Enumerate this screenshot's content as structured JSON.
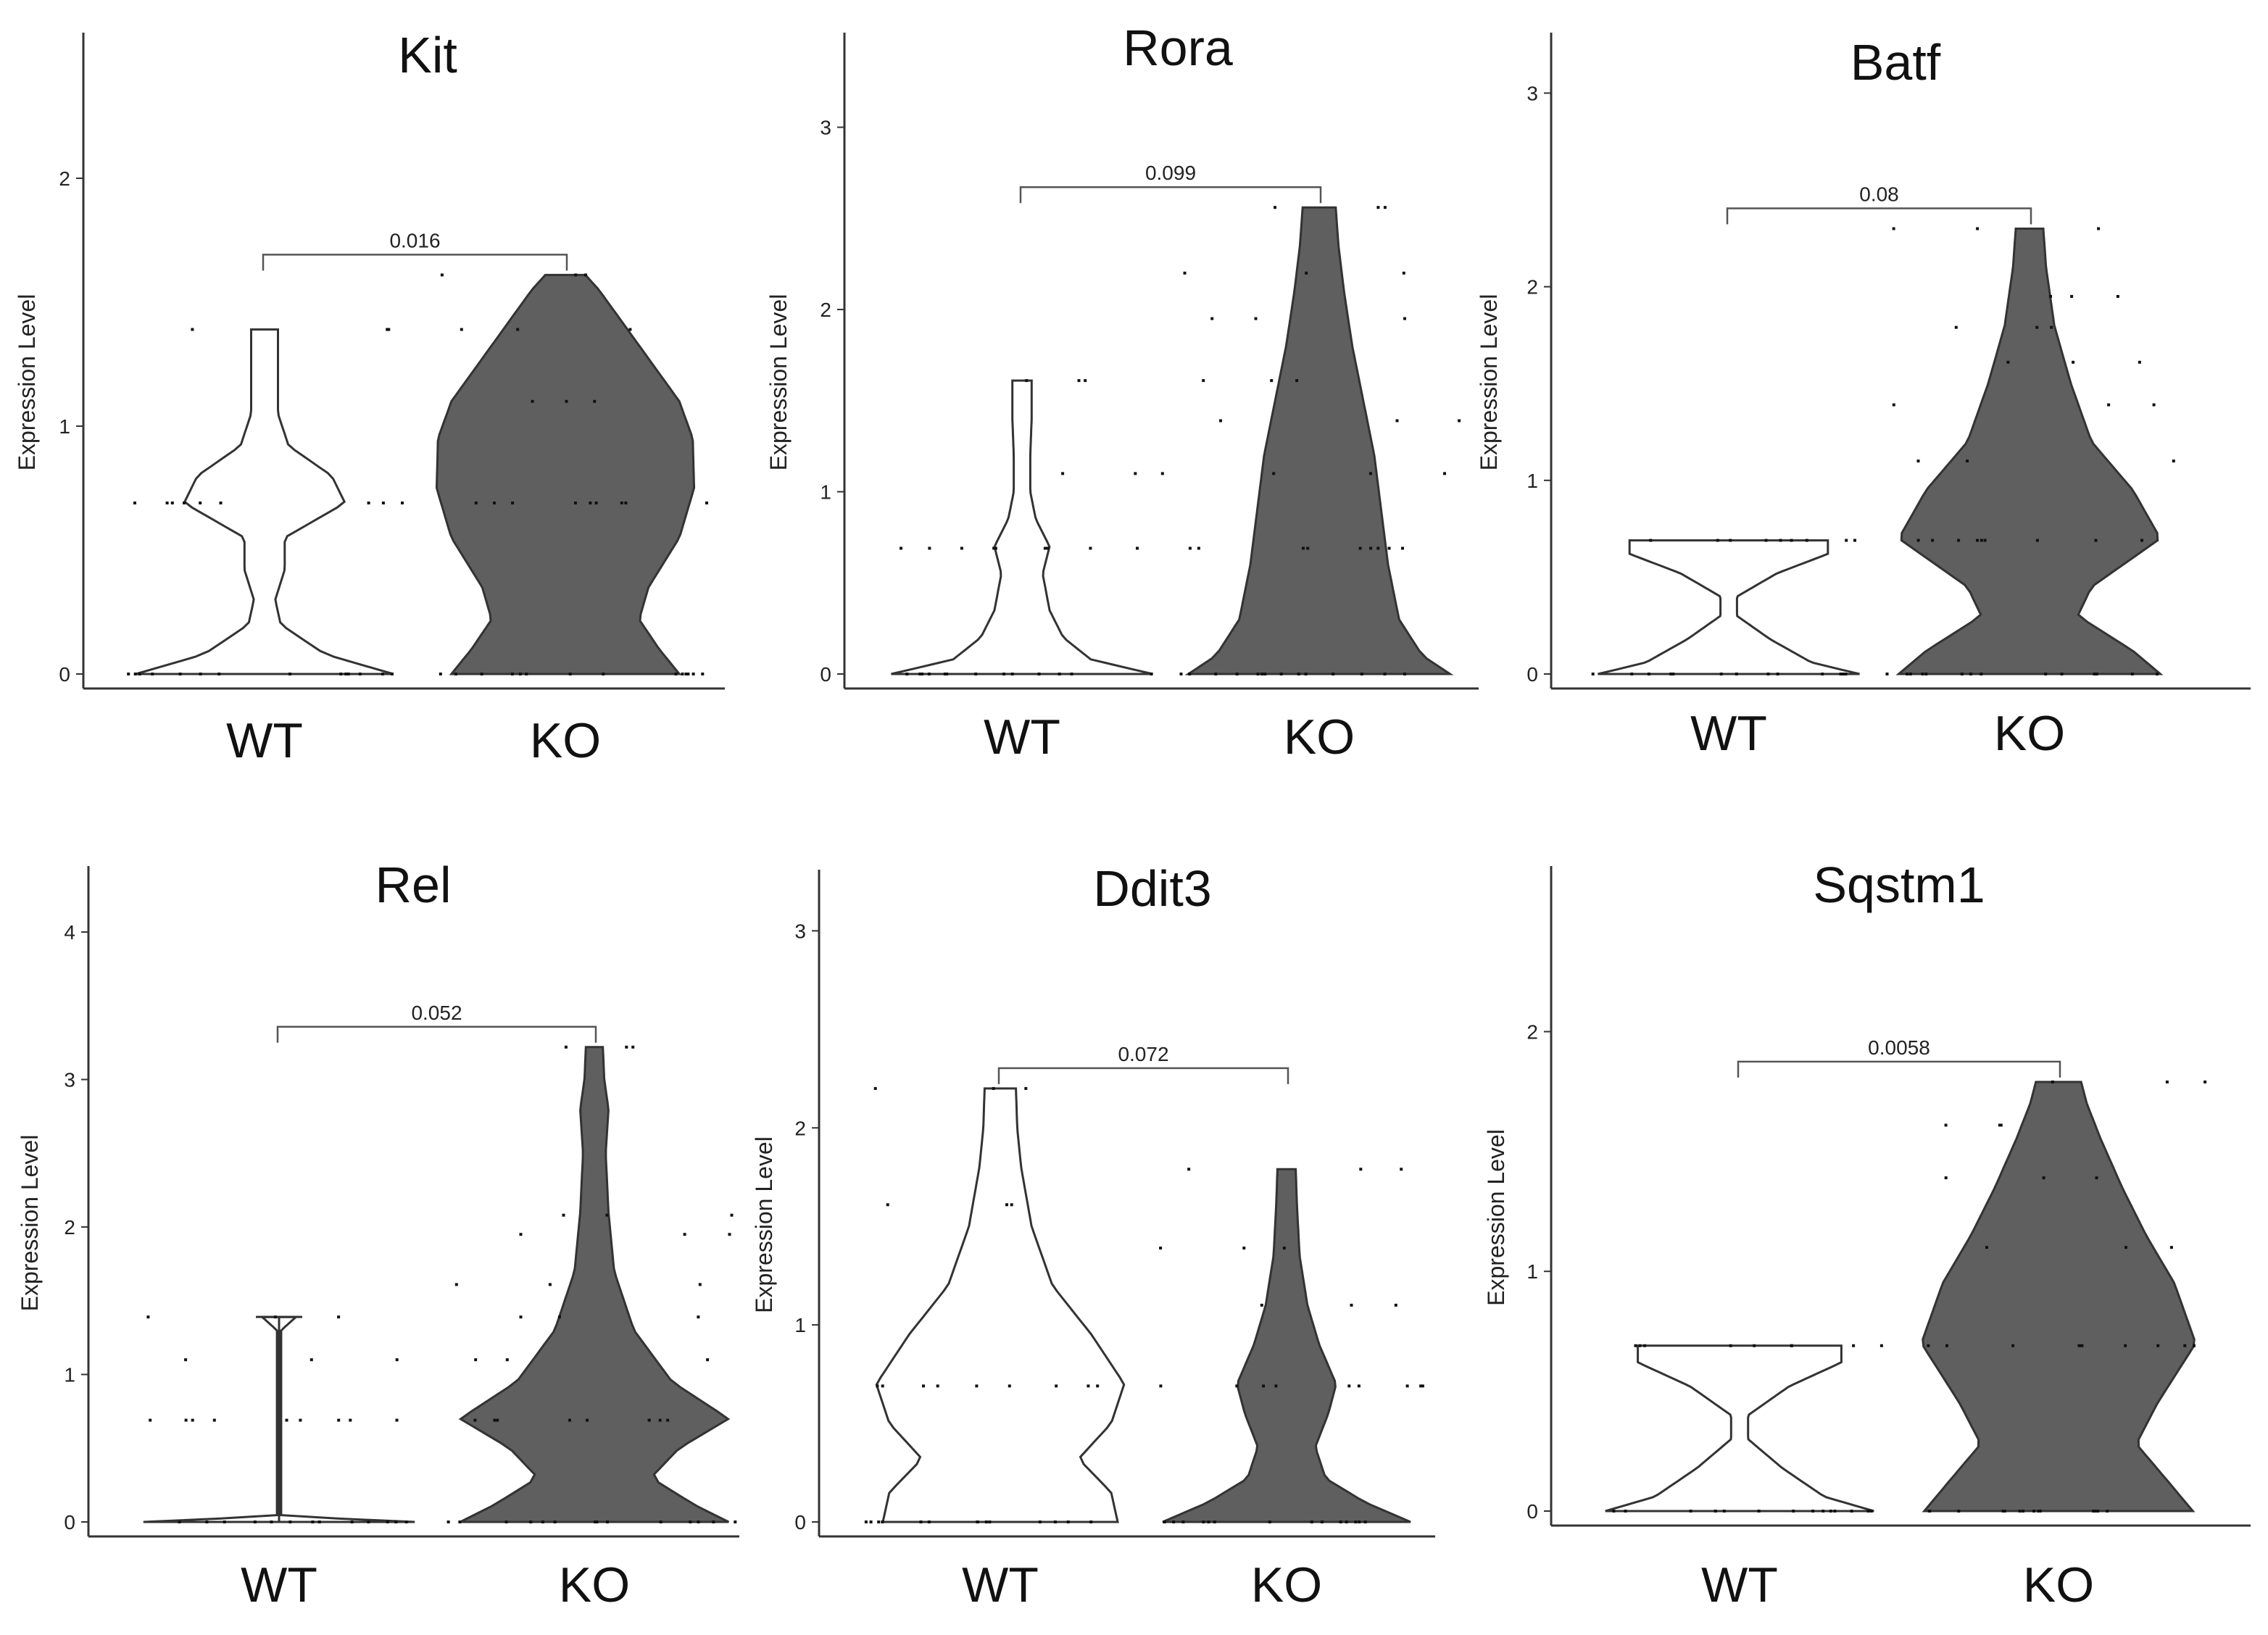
{
  "figure": {
    "y_axis_label": "Expression Level",
    "colors": {
      "wt_fill": "#ffffff",
      "ko_fill": "#5f5f5f",
      "outline": "#333333",
      "point": "#111111"
    }
  },
  "chart_data": [
    {
      "type": "violin",
      "title": "Kit",
      "ylabel": "Expression Level",
      "ylim": [
        0,
        2.5
      ],
      "yticks": [
        "0",
        "1",
        "2"
      ],
      "categories": [
        "WT",
        "KO"
      ],
      "p_value": "0.016",
      "series": [
        {
          "name": "WT",
          "max": 1.39,
          "levels": [
            0,
            0.69,
            1.39
          ],
          "profile": [
            [
              0,
              0.96
            ],
            [
              0.08,
              0.45
            ],
            [
              0.2,
              0.12
            ],
            [
              0.3,
              0.08
            ],
            [
              0.42,
              0.15
            ],
            [
              0.55,
              0.15
            ],
            [
              0.69,
              0.6
            ],
            [
              0.8,
              0.5
            ],
            [
              0.92,
              0.18
            ],
            [
              1.05,
              0.1
            ],
            [
              1.2,
              0.1
            ],
            [
              1.39,
              0.1
            ]
          ]
        },
        {
          "name": "KO",
          "max": 1.61,
          "levels": [
            0,
            0.69,
            1.1,
            1.39,
            1.61
          ],
          "profile": [
            [
              0,
              0.85
            ],
            [
              0.1,
              0.7
            ],
            [
              0.22,
              0.55
            ],
            [
              0.35,
              0.62
            ],
            [
              0.55,
              0.85
            ],
            [
              0.75,
              0.96
            ],
            [
              0.95,
              0.95
            ],
            [
              1.1,
              0.85
            ],
            [
              1.25,
              0.65
            ],
            [
              1.4,
              0.45
            ],
            [
              1.55,
              0.25
            ],
            [
              1.61,
              0.15
            ]
          ]
        }
      ]
    },
    {
      "type": "violin",
      "title": "Rora",
      "ylabel": "Expression Level",
      "ylim": [
        0,
        3.4
      ],
      "yticks": [
        "0",
        "1",
        "2",
        "3"
      ],
      "categories": [
        "WT",
        "KO"
      ],
      "p_value": "0.099",
      "series": [
        {
          "name": "WT",
          "max": 1.61,
          "levels": [
            0,
            0.69,
            1.1,
            1.61
          ],
          "profile": [
            [
              0,
              0.95
            ],
            [
              0.08,
              0.5
            ],
            [
              0.2,
              0.3
            ],
            [
              0.35,
              0.2
            ],
            [
              0.55,
              0.15
            ],
            [
              0.7,
              0.2
            ],
            [
              0.85,
              0.1
            ],
            [
              1.0,
              0.06
            ],
            [
              1.2,
              0.06
            ],
            [
              1.4,
              0.07
            ],
            [
              1.61,
              0.07
            ]
          ]
        },
        {
          "name": "KO",
          "max": 2.56,
          "levels": [
            0,
            0.69,
            1.1,
            1.39,
            1.61,
            1.95,
            2.2,
            2.56
          ],
          "profile": [
            [
              0,
              0.95
            ],
            [
              0.1,
              0.75
            ],
            [
              0.3,
              0.58
            ],
            [
              0.6,
              0.5
            ],
            [
              0.9,
              0.45
            ],
            [
              1.2,
              0.4
            ],
            [
              1.5,
              0.32
            ],
            [
              1.8,
              0.24
            ],
            [
              2.1,
              0.18
            ],
            [
              2.35,
              0.14
            ],
            [
              2.56,
              0.12
            ]
          ]
        }
      ]
    },
    {
      "type": "violin",
      "title": "Batf",
      "ylabel": "Expression Level",
      "ylim": [
        0,
        3.2
      ],
      "yticks": [
        "0",
        "1",
        "2",
        "3"
      ],
      "categories": [
        "WT",
        "KO"
      ],
      "p_value": "0.08",
      "series": [
        {
          "name": "WT",
          "max": 0.69,
          "levels": [
            0,
            0.69
          ],
          "profile": [
            [
              0,
              0.95
            ],
            [
              0.06,
              0.6
            ],
            [
              0.18,
              0.3
            ],
            [
              0.3,
              0.06
            ],
            [
              0.4,
              0.06
            ],
            [
              0.52,
              0.35
            ],
            [
              0.62,
              0.72
            ],
            [
              0.69,
              0.72
            ]
          ]
        },
        {
          "name": "KO",
          "max": 2.3,
          "levels": [
            0,
            0.69,
            1.1,
            1.39,
            1.61,
            1.79,
            1.95,
            2.3
          ],
          "profile": [
            [
              0,
              0.95
            ],
            [
              0.12,
              0.75
            ],
            [
              0.3,
              0.35
            ],
            [
              0.45,
              0.45
            ],
            [
              0.7,
              0.95
            ],
            [
              0.95,
              0.75
            ],
            [
              1.2,
              0.45
            ],
            [
              1.5,
              0.3
            ],
            [
              1.8,
              0.18
            ],
            [
              2.1,
              0.12
            ],
            [
              2.3,
              0.1
            ]
          ]
        }
      ]
    },
    {
      "type": "violin",
      "title": "Rel",
      "ylabel": "Expression Level",
      "ylim": [
        0,
        4.3
      ],
      "yticks": [
        "0",
        "1",
        "2",
        "3",
        "4"
      ],
      "categories": [
        "WT",
        "KO"
      ],
      "p_value": "0.052",
      "series": [
        {
          "name": "WT",
          "max": 1.39,
          "levels": [
            0,
            0.69,
            1.1,
            1.39
          ],
          "profile": [
            [
              0,
              0.96
            ],
            [
              0.04,
              0.015
            ],
            [
              0.3,
              0.015
            ],
            [
              0.6,
              0.015
            ],
            [
              1.0,
              0.015
            ],
            [
              1.3,
              0.015
            ],
            [
              1.39,
              0.12
            ]
          ]
        },
        {
          "name": "KO",
          "max": 3.22,
          "levels": [
            0,
            0.69,
            1.1,
            1.39,
            1.61,
            1.95,
            2.08,
            3.22
          ],
          "profile": [
            [
              0,
              0.95
            ],
            [
              0.12,
              0.7
            ],
            [
              0.3,
              0.4
            ],
            [
              0.5,
              0.6
            ],
            [
              0.7,
              0.95
            ],
            [
              0.95,
              0.55
            ],
            [
              1.3,
              0.28
            ],
            [
              1.7,
              0.14
            ],
            [
              2.1,
              0.1
            ],
            [
              2.5,
              0.08
            ],
            [
              2.8,
              0.1
            ],
            [
              3.0,
              0.07
            ],
            [
              3.22,
              0.06
            ]
          ]
        }
      ]
    },
    {
      "type": "violin",
      "title": "Ddit3",
      "ylabel": "Expression Level",
      "ylim": [
        0,
        3.2
      ],
      "yticks": [
        "0",
        "1",
        "2",
        "3"
      ],
      "categories": [
        "WT",
        "KO"
      ],
      "p_value": "0.072",
      "series": [
        {
          "name": "WT",
          "max": 2.2,
          "levels": [
            0,
            0.69,
            1.61,
            2.2
          ],
          "profile": [
            [
              0,
              0.9
            ],
            [
              0.15,
              0.85
            ],
            [
              0.32,
              0.6
            ],
            [
              0.5,
              0.85
            ],
            [
              0.7,
              0.95
            ],
            [
              0.95,
              0.7
            ],
            [
              1.2,
              0.4
            ],
            [
              1.5,
              0.24
            ],
            [
              1.8,
              0.16
            ],
            [
              2.0,
              0.13
            ],
            [
              2.2,
              0.12
            ]
          ]
        },
        {
          "name": "KO",
          "max": 1.79,
          "levels": [
            0,
            0.69,
            1.1,
            1.39,
            1.79
          ],
          "profile": [
            [
              0,
              0.95
            ],
            [
              0.1,
              0.6
            ],
            [
              0.22,
              0.3
            ],
            [
              0.38,
              0.22
            ],
            [
              0.55,
              0.32
            ],
            [
              0.7,
              0.38
            ],
            [
              0.9,
              0.25
            ],
            [
              1.1,
              0.16
            ],
            [
              1.35,
              0.1
            ],
            [
              1.6,
              0.08
            ],
            [
              1.79,
              0.07
            ]
          ]
        }
      ]
    },
    {
      "type": "violin",
      "title": "Sqstm1",
      "ylabel": "Expression Level",
      "ylim": [
        0,
        2.6
      ],
      "yticks": [
        "0",
        "1",
        "2"
      ],
      "categories": [
        "WT",
        "KO"
      ],
      "p_value": "0.0058",
      "series": [
        {
          "name": "WT",
          "max": 0.69,
          "levels": [
            0,
            0.69
          ],
          "profile": [
            [
              0,
              0.95
            ],
            [
              0.06,
              0.6
            ],
            [
              0.18,
              0.3
            ],
            [
              0.3,
              0.06
            ],
            [
              0.4,
              0.06
            ],
            [
              0.52,
              0.35
            ],
            [
              0.62,
              0.72
            ],
            [
              0.69,
              0.72
            ]
          ]
        },
        {
          "name": "KO",
          "max": 1.79,
          "levels": [
            0,
            0.69,
            1.1,
            1.39,
            1.61,
            1.79
          ],
          "profile": [
            [
              0,
              0.95
            ],
            [
              0.12,
              0.78
            ],
            [
              0.28,
              0.55
            ],
            [
              0.45,
              0.7
            ],
            [
              0.7,
              0.97
            ],
            [
              0.95,
              0.82
            ],
            [
              1.15,
              0.62
            ],
            [
              1.35,
              0.45
            ],
            [
              1.55,
              0.3
            ],
            [
              1.7,
              0.2
            ],
            [
              1.79,
              0.16
            ]
          ]
        }
      ]
    }
  ]
}
